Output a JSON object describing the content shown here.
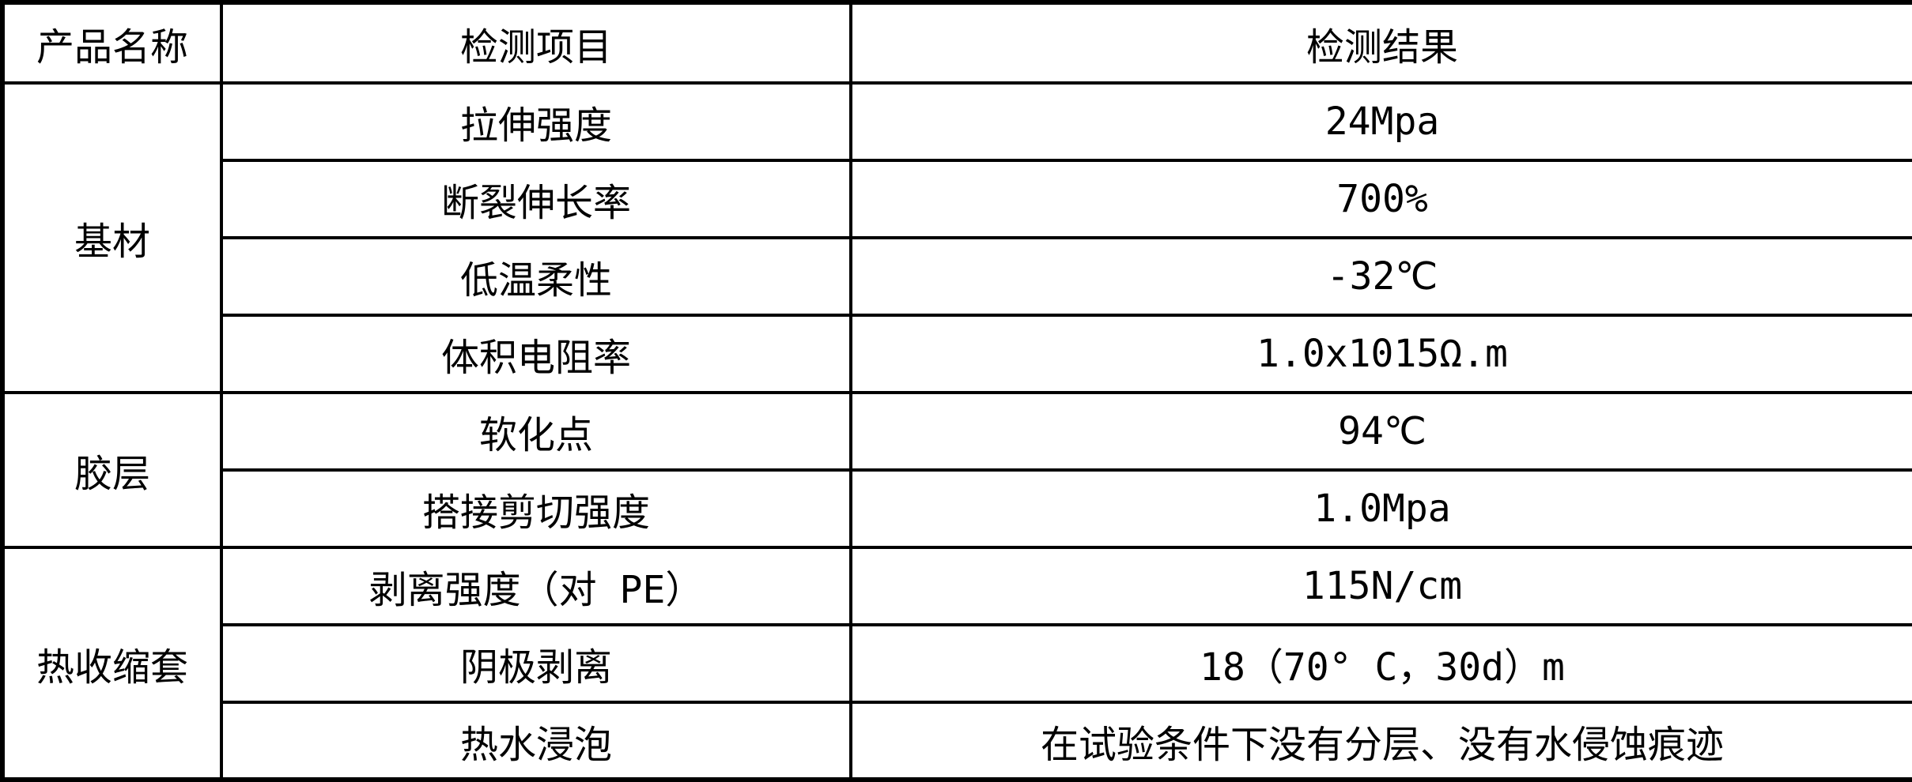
{
  "table": {
    "headers": {
      "product": "产品名称",
      "item": "检测项目",
      "result": "检测结果"
    },
    "groups": [
      {
        "product": "基材",
        "rows": [
          {
            "item": "拉伸强度",
            "result": "24Mpa"
          },
          {
            "item": "断裂伸长率",
            "result": "700%"
          },
          {
            "item": "低温柔性",
            "result": "-32℃"
          },
          {
            "item": "体积电阻率",
            "result": "1.0x1015Ω.m"
          }
        ]
      },
      {
        "product": "胶层",
        "rows": [
          {
            "item": "软化点",
            "result": "94℃"
          },
          {
            "item": "搭接剪切强度",
            "result": "1.0Mpa"
          }
        ]
      },
      {
        "product": "热收缩套",
        "rows": [
          {
            "item": "剥离强度（对 PE）",
            "result": "115N/cm"
          },
          {
            "item": "阴极剥离",
            "result": "18（70° C，30d）m"
          },
          {
            "item": "热水浸泡",
            "result": "在试验条件下没有分层、没有水侵蚀痕迹"
          }
        ]
      }
    ],
    "colors": {
      "border": "#000000",
      "text": "#000000",
      "background": "#ffffff"
    }
  }
}
